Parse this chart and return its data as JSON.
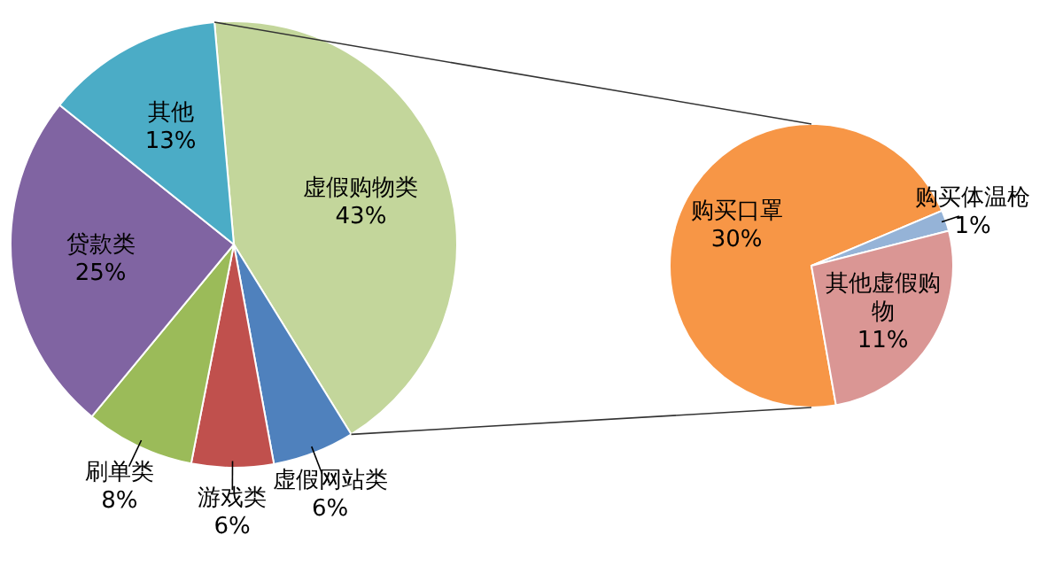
{
  "chart_data": [
    {
      "type": "pie",
      "categories": [
        "虚假购物类",
        "虚假网站类",
        "游戏类",
        "刷单类",
        "贷款类",
        "其他"
      ],
      "values": [
        43,
        6,
        6,
        8,
        25,
        13
      ],
      "colors": [
        "#c3d69b",
        "#4f81bd",
        "#c0504d",
        "#9bbb59",
        "#8064a2",
        "#4bacc6"
      ],
      "value_labels": [
        "43%",
        "6%",
        "6%",
        "8%",
        "25%",
        "13%"
      ]
    },
    {
      "type": "pie",
      "categories": [
        "购买口罩",
        "购买体温枪",
        "其他虚假购物"
      ],
      "values": [
        30,
        1,
        11
      ],
      "colors": [
        "#f79646",
        "#95b3d7",
        "#da9694"
      ],
      "value_labels": [
        "30%",
        "1%",
        "11%"
      ]
    }
  ]
}
